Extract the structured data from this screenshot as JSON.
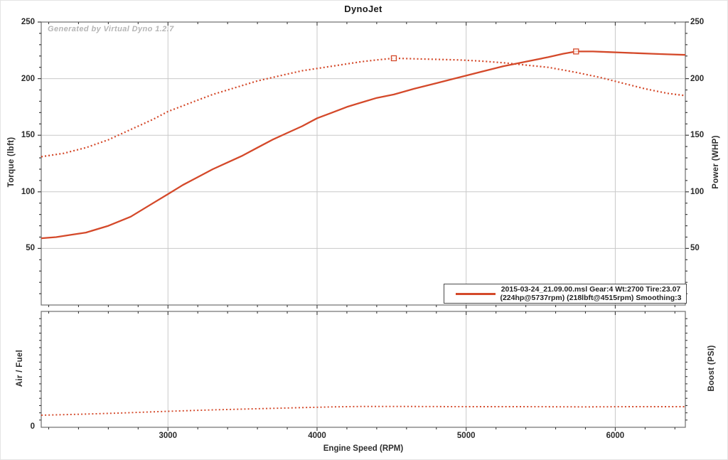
{
  "title": "DynoJet",
  "watermark": "Generated by Virtual Dyno 1.2.7",
  "axes": {
    "x_label": "Engine Speed (RPM)",
    "main_left_label": "Torque (lbft)",
    "main_right_label": "Power (WHP)",
    "bottom_left_label": "Air / Fuel",
    "bottom_right_label": "Boost (PSI)",
    "bottom_zero_label": "0"
  },
  "legend": {
    "line1": "2015-03-24_21.09.00.msl Gear:4 Wt:2700 Tire:23.07",
    "line2": "(224hp@5737rpm) (218lbft@4515rpm) Smoothing:3"
  },
  "colors": {
    "curve": "#D4492A",
    "grid": "#c9c9c9",
    "frame": "#6f6f6f",
    "tick": "#3a3a3a"
  },
  "chart_data": [
    {
      "type": "line",
      "title": "DynoJet",
      "xlabel": "Engine Speed (RPM)",
      "ylabel_left": "Torque (lbft)",
      "ylabel_right": "Power (WHP)",
      "xlim": [
        2150,
        6470
      ],
      "ylim": [
        0,
        250
      ],
      "x_ticks": [
        3000,
        4000,
        5000,
        6000
      ],
      "y_ticks": [
        250,
        200,
        150,
        100,
        50
      ],
      "grid": true,
      "legend_position": "bottom-right",
      "peaks": {
        "power": "224hp@5737rpm",
        "torque": "218lbft@4515rpm"
      },
      "series": [
        {
          "name": "power_whp",
          "style": "solid",
          "points": [
            [
              2150,
              59
            ],
            [
              2250,
              60
            ],
            [
              2350,
              62
            ],
            [
              2450,
              64
            ],
            [
              2600,
              70
            ],
            [
              2750,
              78
            ],
            [
              2900,
              90
            ],
            [
              3000,
              98
            ],
            [
              3100,
              106
            ],
            [
              3200,
              113
            ],
            [
              3300,
              120
            ],
            [
              3400,
              126
            ],
            [
              3500,
              132
            ],
            [
              3600,
              139
            ],
            [
              3700,
              146
            ],
            [
              3800,
              152
            ],
            [
              3900,
              158
            ],
            [
              4000,
              165
            ],
            [
              4100,
              170
            ],
            [
              4200,
              175
            ],
            [
              4300,
              179
            ],
            [
              4400,
              183
            ],
            [
              4515,
              186
            ],
            [
              4650,
              191
            ],
            [
              4800,
              196
            ],
            [
              4950,
              201
            ],
            [
              5100,
              206
            ],
            [
              5250,
              211
            ],
            [
              5400,
              215
            ],
            [
              5550,
              219
            ],
            [
              5650,
              222
            ],
            [
              5737,
              224
            ],
            [
              5850,
              224
            ],
            [
              5950,
              223.5
            ],
            [
              6050,
              223
            ],
            [
              6150,
              222.5
            ],
            [
              6250,
              222
            ],
            [
              6350,
              221.5
            ],
            [
              6470,
              221
            ]
          ]
        },
        {
          "name": "torque_lbft",
          "style": "dotted",
          "points": [
            [
              2150,
              131
            ],
            [
              2300,
              134
            ],
            [
              2450,
              139
            ],
            [
              2600,
              146
            ],
            [
              2750,
              155
            ],
            [
              2900,
              164
            ],
            [
              3000,
              171
            ],
            [
              3100,
              176
            ],
            [
              3200,
              181
            ],
            [
              3300,
              186
            ],
            [
              3400,
              190
            ],
            [
              3500,
              194
            ],
            [
              3600,
              198
            ],
            [
              3700,
              201
            ],
            [
              3800,
              204
            ],
            [
              3900,
              207
            ],
            [
              4000,
              209
            ],
            [
              4100,
              211
            ],
            [
              4200,
              213
            ],
            [
              4300,
              215
            ],
            [
              4400,
              216.5
            ],
            [
              4515,
              218
            ],
            [
              4650,
              217.5
            ],
            [
              4800,
              217
            ],
            [
              4950,
              216.5
            ],
            [
              5100,
              215.5
            ],
            [
              5250,
              214
            ],
            [
              5400,
              212
            ],
            [
              5550,
              210
            ],
            [
              5737,
              205.5
            ],
            [
              5900,
              201
            ],
            [
              6050,
              196
            ],
            [
              6200,
              191
            ],
            [
              6350,
              187
            ],
            [
              6470,
              185
            ]
          ]
        }
      ],
      "markers": [
        {
          "series": "power_whp",
          "x": 5737,
          "y": 224
        },
        {
          "series": "torque_lbft",
          "x": 4515,
          "y": 218
        }
      ]
    },
    {
      "type": "line",
      "ylabel_left": "Air / Fuel",
      "ylabel_right": "Boost (PSI)",
      "xlim": [
        2150,
        6470
      ],
      "ylim": [
        0,
        50
      ],
      "ylim_note": "only 0 labeled; max estimated from unlabeled minor ticks",
      "x_ticks": [
        3000,
        4000,
        5000,
        6000
      ],
      "y_ticks": [
        0
      ],
      "grid": true,
      "series": [
        {
          "name": "air_fuel",
          "style": "dotted",
          "points": [
            [
              2150,
              5.2
            ],
            [
              2400,
              5.6
            ],
            [
              2700,
              6.2
            ],
            [
              3000,
              6.9
            ],
            [
              3300,
              7.5
            ],
            [
              3600,
              8.0
            ],
            [
              3900,
              8.5
            ],
            [
              4100,
              8.8
            ],
            [
              4300,
              9.0
            ],
            [
              4600,
              9.0
            ],
            [
              5000,
              8.9
            ],
            [
              5400,
              8.9
            ],
            [
              5800,
              8.8
            ],
            [
              6100,
              8.9
            ],
            [
              6470,
              8.9
            ]
          ]
        }
      ]
    }
  ]
}
